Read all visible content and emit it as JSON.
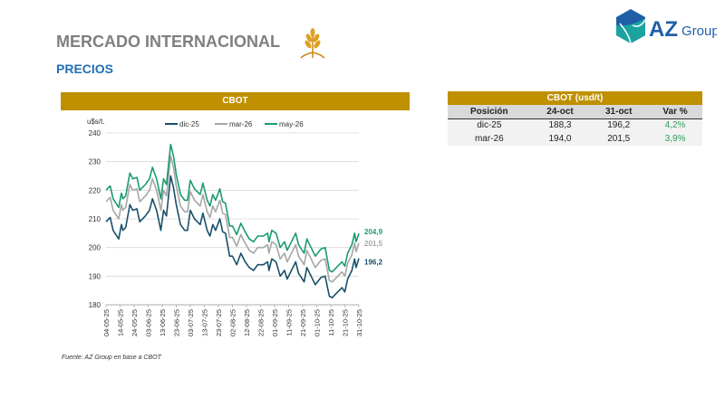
{
  "header": {
    "title": "MERCADO INTERNACIONAL",
    "subtitle": "PRECIOS",
    "logo_text": "AZ Group",
    "logo_az": "AZ",
    "logo_group": "Group"
  },
  "colors": {
    "gold": "#bf9000",
    "dic": "#17506b",
    "mar": "#a6a6a6",
    "may": "#1a9a74",
    "green": "#2e9e5a"
  },
  "chart_panel": {
    "title": "CBOT",
    "source": "Fuente: AZ Group en base a CBOT"
  },
  "chart_data": {
    "type": "line",
    "title": "CBOT",
    "ylabel": "u$s/t.",
    "xlabel": "",
    "ylim": [
      180,
      240
    ],
    "yticks": [
      180,
      190,
      200,
      210,
      220,
      230,
      240
    ],
    "grid": true,
    "legend": "top",
    "x_unit": "days since 04-05-25",
    "xtick_labels": [
      "04-05-25",
      "14-05-25",
      "24-05-25",
      "03-06-25",
      "13-06-25",
      "23-06-25",
      "03-07-25",
      "13-07-25",
      "23-07-25",
      "02-08-25",
      "12-08-25",
      "22-08-25",
      "01-09-25",
      "11-09-25",
      "21-09-25",
      "01-10-25",
      "11-10-25",
      "21-10-25",
      "31-10-25"
    ],
    "xtick_days": [
      0,
      10,
      20,
      30,
      40,
      50,
      60,
      70,
      80,
      90,
      100,
      110,
      120,
      130,
      140,
      150,
      160,
      170,
      180
    ],
    "x": [
      0,
      3,
      5,
      9,
      11,
      12,
      14,
      17,
      19,
      22,
      24,
      28,
      31,
      33,
      36,
      39,
      41,
      43,
      46,
      48,
      50,
      53,
      56,
      58,
      60,
      63,
      67,
      69,
      72,
      74,
      76,
      78,
      81,
      83,
      85,
      88,
      90,
      93,
      96,
      99,
      102,
      105,
      108,
      112,
      115,
      116,
      118,
      121,
      124,
      127,
      129,
      132,
      135,
      137,
      141,
      143,
      146,
      149,
      153,
      156,
      159,
      161,
      164,
      168,
      170,
      172,
      175,
      177,
      178,
      180
    ],
    "series": [
      {
        "name": "dic-25",
        "end_label": "196,2",
        "values": [
          209,
          210.5,
          206,
          203,
          208,
          206,
          207,
          215,
          213,
          213.5,
          209,
          211,
          213,
          217,
          213,
          206,
          213,
          211,
          225,
          221,
          215,
          208,
          206,
          206,
          213,
          210,
          208,
          212,
          206,
          204,
          208,
          206,
          210,
          205.5,
          205,
          197,
          197,
          194,
          198,
          195,
          193,
          192,
          194,
          194,
          195,
          192,
          196,
          195,
          190,
          192,
          189,
          192,
          195,
          191,
          188,
          193,
          190,
          187,
          189.5,
          190,
          183,
          182.5,
          184,
          186,
          184.5,
          189,
          192,
          196,
          193,
          196.2
        ]
      },
      {
        "name": "mar-26",
        "end_label": "201,5",
        "values": [
          216,
          217.5,
          213,
          210,
          215,
          213,
          214,
          222,
          220,
          220.5,
          216,
          218,
          220,
          224,
          220,
          213,
          220,
          218,
          232,
          228,
          221.5,
          214.5,
          212.5,
          212.5,
          219.5,
          216.5,
          214.5,
          218.5,
          212.5,
          210.5,
          214.5,
          212.5,
          216.5,
          212,
          211.5,
          203.5,
          203.5,
          200.5,
          204.5,
          201.5,
          199,
          198,
          200,
          200,
          201,
          198,
          202,
          201,
          196,
          198,
          195,
          198,
          201,
          197,
          194,
          199,
          196,
          193,
          195.5,
          196,
          188.5,
          188,
          189.5,
          191.5,
          190,
          194.5,
          197.5,
          201.5,
          198.5,
          201.5
        ]
      },
      {
        "name": "may-26",
        "end_label": "204,9",
        "values": [
          220,
          221.5,
          217,
          214,
          219,
          217,
          218,
          226,
          224,
          224.5,
          220,
          222,
          224,
          228,
          224,
          217,
          224,
          222,
          236,
          232,
          225.5,
          218.5,
          216.5,
          216.5,
          223.5,
          220.5,
          218.5,
          222.5,
          216.5,
          214.5,
          218.5,
          216.5,
          220.5,
          216,
          215.5,
          207.5,
          207.5,
          204.5,
          208.5,
          205.5,
          203,
          202,
          204,
          204,
          205,
          202,
          206,
          205,
          200,
          202,
          199,
          202,
          205,
          201,
          198,
          203,
          200,
          197,
          199.5,
          200,
          192,
          191.5,
          193,
          195,
          193.5,
          198,
          201,
          205,
          202,
          204.9
        ]
      }
    ]
  },
  "table": {
    "title": "CBOT (usd/t)",
    "columns": [
      "Posición",
      "24-oct",
      "31-oct",
      "Var %"
    ],
    "rows": [
      [
        "dic-25",
        "188,3",
        "196,2",
        "4,2%"
      ],
      [
        "mar-26",
        "194,0",
        "201,5",
        "3,9%"
      ]
    ]
  }
}
